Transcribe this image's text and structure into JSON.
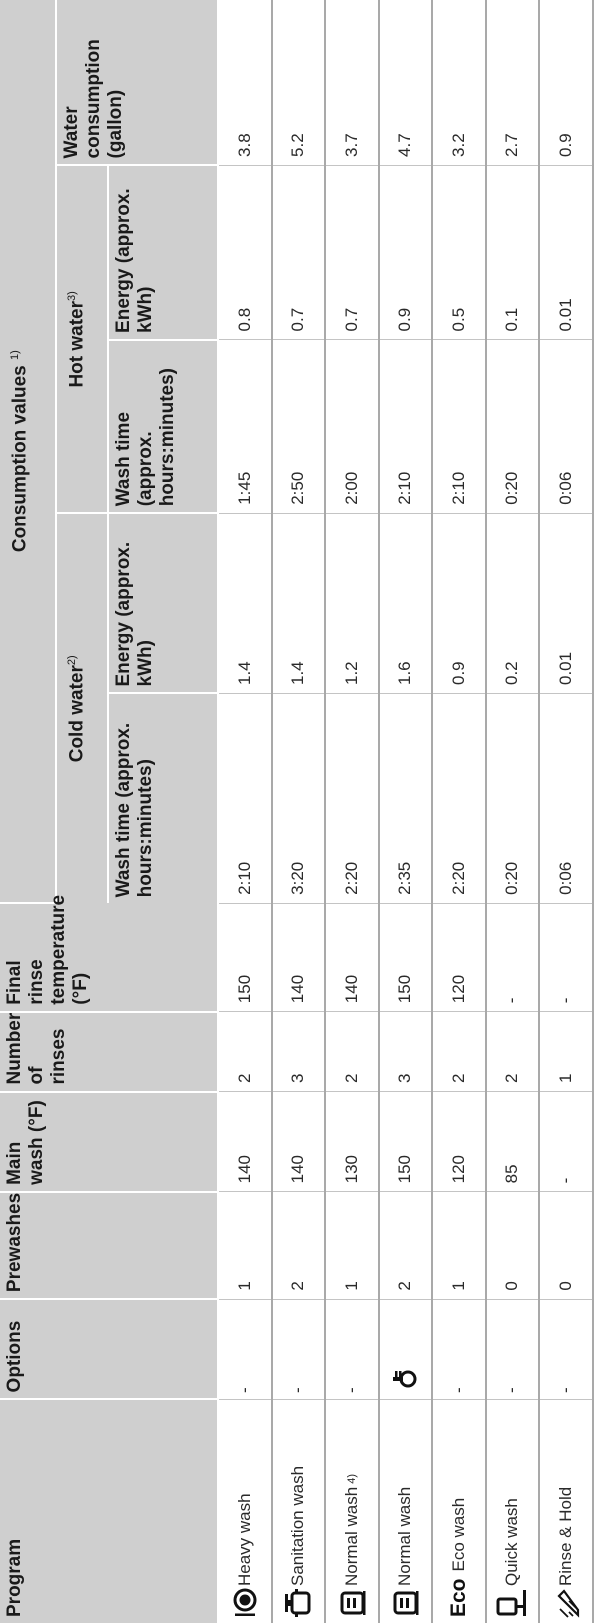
{
  "headers": {
    "program": "Program",
    "options": "Options",
    "prewashes": "Prewashes",
    "main_wash": "Main wash (°F)",
    "rinses": "Number of rinses",
    "final_rinse": "Final rinse temperature (°F)",
    "consumption": "Consumption values",
    "consumption_note": "1)",
    "cold_water": "Cold water",
    "cold_note": "2)",
    "hot_water": "Hot water",
    "hot_note": "3)",
    "wash_time": "Wash time (approx. hours:minutes)",
    "energy": "Energy (approx. kWh)",
    "water": "Water consumption (gallon)"
  },
  "rows": [
    {
      "icon": "heavy-wash-icon",
      "program": "Heavy wash",
      "note": "",
      "options": "-",
      "options_icon": "",
      "prewashes": "1",
      "main": "140",
      "rinses": "2",
      "final": "150",
      "cold_time": "2:10",
      "cold_energy": "1.4",
      "hot_time": "1:45",
      "hot_energy": "0.8",
      "water": "3.8"
    },
    {
      "icon": "sanitation-wash-icon",
      "program": "Sanitation wash",
      "note": "",
      "options": "-",
      "options_icon": "",
      "prewashes": "2",
      "main": "140",
      "rinses": "3",
      "final": "140",
      "cold_time": "3:20",
      "cold_energy": "1.4",
      "hot_time": "2:50",
      "hot_energy": "0.7",
      "water": "5.2"
    },
    {
      "icon": "normal-wash-icon",
      "program": "Normal wash",
      "note": "4)",
      "options": "-",
      "options_icon": "",
      "prewashes": "1",
      "main": "130",
      "rinses": "2",
      "final": "140",
      "cold_time": "2:20",
      "cold_energy": "1.2",
      "hot_time": "2:00",
      "hot_energy": "0.7",
      "water": "3.7"
    },
    {
      "icon": "normal-wash-icon",
      "program": "Normal wash",
      "note": "",
      "options": "",
      "options_icon": "sanitize-option-icon",
      "prewashes": "2",
      "main": "150",
      "rinses": "3",
      "final": "150",
      "cold_time": "2:35",
      "cold_energy": "1.6",
      "hot_time": "2:10",
      "hot_energy": "0.9",
      "water": "4.7"
    },
    {
      "icon": "eco-wash-icon",
      "icon_text": "Eco",
      "program": "Eco wash",
      "note": "",
      "options": "-",
      "options_icon": "",
      "prewashes": "1",
      "main": "120",
      "rinses": "2",
      "final": "120",
      "cold_time": "2:20",
      "cold_energy": "0.9",
      "hot_time": "2:10",
      "hot_energy": "0.5",
      "water": "3.2"
    },
    {
      "icon": "quick-wash-icon",
      "program": "Quick wash",
      "note": "",
      "options": "-",
      "options_icon": "",
      "prewashes": "0",
      "main": "85",
      "rinses": "2",
      "final": "-",
      "cold_time": "0:20",
      "cold_energy": "0.2",
      "hot_time": "0:20",
      "hot_energy": "0.1",
      "water": "2.7"
    },
    {
      "icon": "rinse-hold-icon",
      "program": "Rinse & Hold",
      "note": "",
      "options": "-",
      "options_icon": "",
      "prewashes": "0",
      "main": "-",
      "rinses": "1",
      "final": "-",
      "cold_time": "0:06",
      "cold_energy": "0.01",
      "hot_time": "0:06",
      "hot_energy": "0.01",
      "water": "0.9"
    }
  ]
}
